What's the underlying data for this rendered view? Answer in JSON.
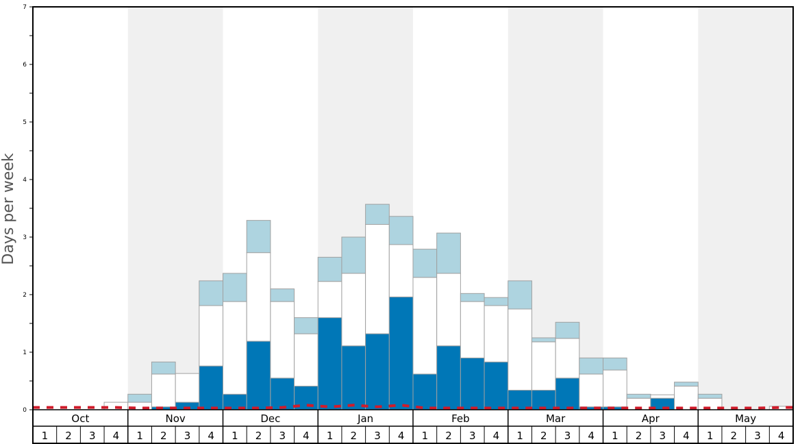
{
  "chart_data": {
    "type": "bar",
    "stacked": true,
    "ylabel": "Days per week",
    "ylim": [
      0,
      7
    ],
    "yticks": [
      "0",
      "1",
      "2",
      "3",
      "4",
      "5",
      "6",
      "7"
    ],
    "months": [
      "Oct",
      "Nov",
      "Dec",
      "Jan",
      "Feb",
      "Mar",
      "Apr",
      "May"
    ],
    "weeks": [
      "1",
      "2",
      "3",
      "4"
    ],
    "shaded_months": [
      "Nov",
      "Jan",
      "Mar",
      "May"
    ],
    "series": [
      {
        "key": "dark",
        "color": "#0077b7",
        "values": [
          0,
          0,
          0,
          0,
          0,
          0.05,
          0.13,
          0.76,
          0.27,
          1.19,
          0.55,
          0.41,
          1.6,
          1.11,
          1.32,
          1.96,
          0.62,
          1.11,
          0.9,
          0.83,
          0.34,
          0.34,
          0.55,
          0.05,
          0.05,
          0,
          0.2,
          0,
          0,
          0,
          0,
          0
        ]
      },
      {
        "key": "white",
        "color": "#ffffff",
        "values": [
          0,
          0,
          0,
          0.13,
          0.13,
          0.57,
          0.5,
          1.05,
          1.61,
          1.54,
          1.33,
          0.91,
          0.63,
          1.26,
          1.9,
          0.91,
          1.68,
          1.26,
          0.98,
          0.98,
          1.41,
          0.84,
          0.69,
          0.57,
          0.64,
          0.2,
          0.06,
          0.41,
          0.2,
          0,
          0,
          0.06
        ]
      },
      {
        "key": "light",
        "color": "#aed4e0",
        "values": [
          0,
          0,
          0,
          0,
          0.14,
          0.21,
          0,
          0.43,
          0.49,
          0.56,
          0.22,
          0.28,
          0.42,
          0.63,
          0.35,
          0.49,
          0.49,
          0.7,
          0.14,
          0.14,
          0.49,
          0.07,
          0.28,
          0.28,
          0.21,
          0.07,
          0,
          0.07,
          0.07,
          0,
          0,
          0
        ]
      }
    ],
    "reference_line": {
      "color": "#d01c2b",
      "style": "dashed",
      "values": [
        0.04,
        0.04,
        0.04,
        0.04,
        0.03,
        0.03,
        0.03,
        0.03,
        0.03,
        0.03,
        0.04,
        0.08,
        0.05,
        0.08,
        0.05,
        0.08,
        0.03,
        0.03,
        0.03,
        0.03,
        0.03,
        0.03,
        0.03,
        0.03,
        0.03,
        0.03,
        0.03,
        0.03,
        0.03,
        0.03,
        0.03,
        0.04
      ]
    },
    "colors": {
      "band_shade": "#f0f0f0",
      "bar_outline": "#a0a0a0",
      "frame": "#000000"
    }
  }
}
